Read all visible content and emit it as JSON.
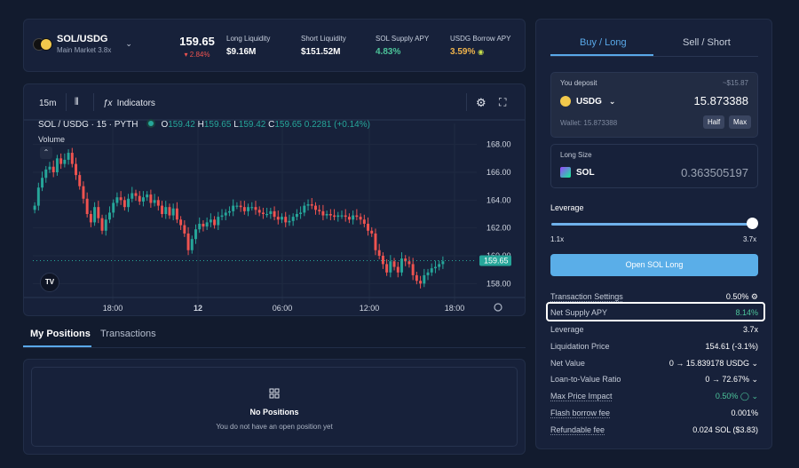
{
  "market": {
    "pair": "SOL/USDG",
    "sub": "Main Market 3.8x",
    "price": "159.65",
    "change": "▾ 2.84%",
    "stats": [
      {
        "label": "Long Liquidity",
        "value": "$9.16M"
      },
      {
        "label": "Short Liquidity",
        "value": "$151.52M"
      },
      {
        "label": "SOL Supply APY",
        "value": "4.83%"
      },
      {
        "label": "USDG Borrow APY",
        "value": "3.59%"
      }
    ]
  },
  "chart_toolbar": {
    "interval": "15m",
    "indicators": "Indicators"
  },
  "chart_legend": {
    "symbol": "SOL / USDG · 15 · PYTH",
    "o_label": "O",
    "o": "159.42",
    "h_label": "H",
    "h": "159.65",
    "l_label": "L",
    "l": "159.42",
    "c_label": "C",
    "c": "159.65",
    "change": "0.2281 (+0.14%)",
    "volume": "Volume"
  },
  "chart_data": {
    "type": "candlestick",
    "y_ticks": [
      "168.00",
      "166.00",
      "164.00",
      "162.00",
      "160.00",
      "158.00"
    ],
    "x_ticks": [
      "18:00",
      "12",
      "06:00",
      "12:00",
      "18:00"
    ],
    "ylim": [
      157.0,
      169.0
    ],
    "last_price": "159.65",
    "closes": [
      163.6,
      164.9,
      165.6,
      166.2,
      166.4,
      166.0,
      167.0,
      166.6,
      166.9,
      167.4,
      166.6,
      165.8,
      165.0,
      164.1,
      163.0,
      162.4,
      163.5,
      162.7,
      161.8,
      162.6,
      163.1,
      163.8,
      164.2,
      164.0,
      163.5,
      164.1,
      164.5,
      164.3,
      163.9,
      164.2,
      164.4,
      163.8,
      164.0,
      163.6,
      163.0,
      163.5,
      162.9,
      163.4,
      162.6,
      162.2,
      161.6,
      160.4,
      161.2,
      161.9,
      162.3,
      162.1,
      162.4,
      162.6,
      162.2,
      162.8,
      162.9,
      163.1,
      163.2,
      163.6,
      163.6,
      163.5,
      163.2,
      163.5,
      163.5,
      163.3,
      163.1,
      163.0,
      163.0,
      163.2,
      162.8,
      162.6,
      162.8,
      162.4,
      162.5,
      162.8,
      163.0,
      163.1,
      163.6,
      163.7,
      163.6,
      163.3,
      163.2,
      162.9,
      163.0,
      162.9,
      162.8,
      162.9,
      162.9,
      162.8,
      162.6,
      162.9,
      162.8,
      162.6,
      162.3,
      161.8,
      161.6,
      160.4,
      160.0,
      159.4,
      158.8,
      159.6,
      159.2,
      158.8,
      159.8,
      159.6,
      159.4,
      158.6,
      158.2,
      158.0,
      158.6,
      158.8,
      159.1,
      159.2,
      159.4,
      159.6
    ]
  },
  "tabs": {
    "positions": "My Positions",
    "transactions": "Transactions"
  },
  "positions": {
    "empty_title": "No Positions",
    "empty_sub": "You do not have an open position yet"
  },
  "trade": {
    "tab_long": "Buy / Long",
    "tab_short": "Sell / Short",
    "deposit_label": "You deposit",
    "deposit_usd": "~$15.87",
    "deposit_token": "USDG",
    "deposit_amount": "15.873388",
    "wallet": "Wallet: 15.873388",
    "half": "Half",
    "max": "Max",
    "size_label": "Long Size",
    "size_token": "SOL",
    "size_amount": "0.363505197",
    "leverage_label": "Leverage",
    "lev_min": "1.1x",
    "lev_max": "3.7x",
    "leverage_fraction": 1.0,
    "open_button": "Open SOL Long",
    "details": [
      {
        "k": "Transaction Settings",
        "v": "0.50% ⚙"
      },
      {
        "k": "Net Supply APY",
        "v": "8.14%"
      },
      {
        "k": "Leverage",
        "v": "3.7x"
      },
      {
        "k": "Liquidation Price",
        "v": "154.61 (-3.1%)"
      },
      {
        "k": "Net Value",
        "v": "0 → 15.839178 USDG  ⌄"
      },
      {
        "k": "Loan-to-Value Ratio",
        "v": "0 → 72.67%  ⌄"
      },
      {
        "k": "Max Price Impact",
        "v": "0.50%  ◯  ⌄"
      },
      {
        "k": "Flash borrow fee",
        "v": "0.001%"
      },
      {
        "k": "Refundable fee",
        "v": "0.024 SOL ($3.83)"
      }
    ]
  }
}
